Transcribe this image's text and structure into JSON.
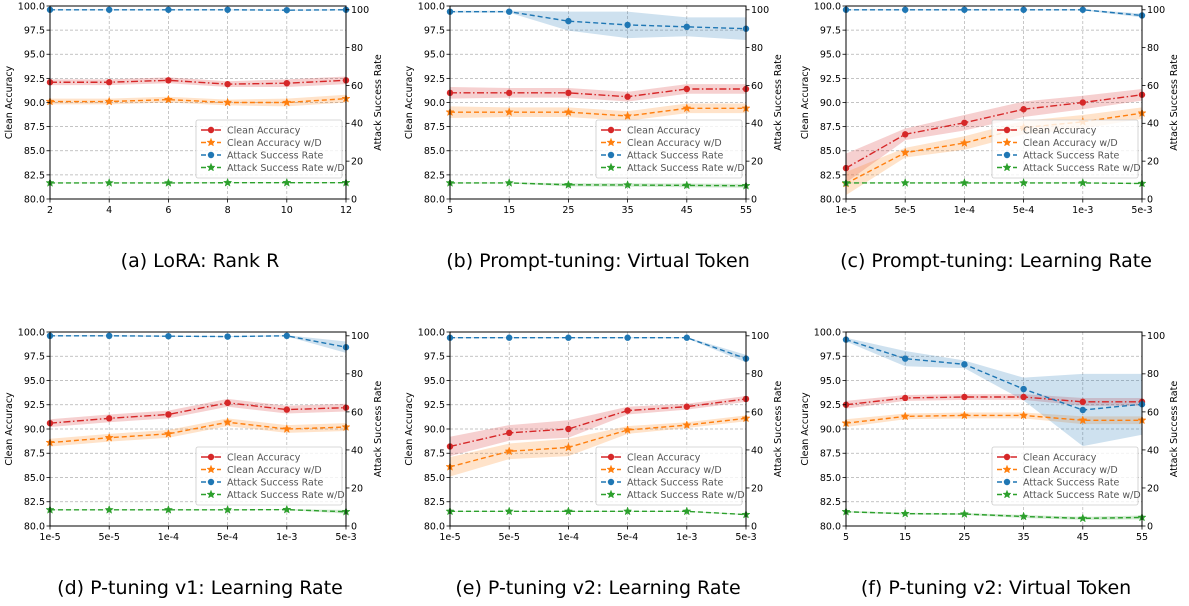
{
  "chart_data": [
    {
      "type": "line",
      "caption": "(a) LoRA: Rank R",
      "x": [
        2,
        4,
        6,
        8,
        10,
        12
      ],
      "categorical_x": false,
      "xlim": [
        2,
        12
      ],
      "xticks": [
        "2",
        "4",
        "6",
        "8",
        "10",
        "12"
      ],
      "ylabel": "Clean Accuracy",
      "ylim": [
        80.0,
        100.0
      ],
      "yticks": [
        "80.0",
        "82.5",
        "85.0",
        "87.5",
        "90.0",
        "92.5",
        "95.0",
        "97.5",
        "100.0"
      ],
      "y2label": "Attack Success Rate",
      "y2lim": [
        0,
        102
      ],
      "y2ticks": [
        "0",
        "20",
        "40",
        "60",
        "80",
        "100"
      ],
      "grid": true,
      "legend_loc": "center right",
      "series": [
        {
          "name": "Clean Accuracy",
          "axis": "left",
          "color": "#d62728",
          "marker": "circle",
          "values": [
            92.1,
            92.1,
            92.3,
            91.9,
            92.0,
            92.3
          ],
          "band": [
            0.3,
            0.3,
            0.3,
            0.3,
            0.4,
            0.4
          ]
        },
        {
          "name": "Clean Accuracy w/D",
          "axis": "left",
          "color": "#ff7f0e",
          "marker": "star",
          "values": [
            90.1,
            90.1,
            90.3,
            90.0,
            90.0,
            90.4
          ],
          "band": [
            0.3,
            0.3,
            0.3,
            0.3,
            0.4,
            0.4
          ]
        },
        {
          "name": "Attack Success Rate",
          "axis": "right",
          "color": "#1f77b4",
          "marker": "circle",
          "values": [
            100,
            100,
            100,
            100,
            99.8,
            100
          ],
          "band": [
            0.3,
            0.3,
            0.3,
            0.3,
            0.3,
            0.3
          ]
        },
        {
          "name": "Attack Success Rate w/D",
          "axis": "right",
          "color": "#2ca02c",
          "marker": "star",
          "values": [
            8.5,
            8.5,
            8.5,
            8.6,
            8.6,
            8.6
          ],
          "band": [
            0.2,
            0.2,
            0.2,
            0.2,
            0.2,
            0.2
          ]
        }
      ]
    },
    {
      "type": "line",
      "caption": "(b) Prompt-tuning: Virtual Token",
      "x": [
        5,
        15,
        25,
        35,
        45,
        55
      ],
      "categorical_x": false,
      "xlim": [
        5,
        55
      ],
      "xticks": [
        "5",
        "15",
        "25",
        "35",
        "45",
        "55"
      ],
      "ylabel": "Clean Accuracy",
      "ylim": [
        80.0,
        100.0
      ],
      "yticks": [
        "80.0",
        "82.5",
        "85.0",
        "87.5",
        "90.0",
        "92.5",
        "95.0",
        "97.5",
        "100.0"
      ],
      "y2label": "Attack Success Rate",
      "y2lim": [
        0,
        102
      ],
      "y2ticks": [
        "0",
        "20",
        "40",
        "60",
        "80",
        "100"
      ],
      "grid": true,
      "legend_loc": "center right",
      "series": [
        {
          "name": "Clean Accuracy",
          "axis": "left",
          "color": "#d62728",
          "marker": "circle",
          "values": [
            91.0,
            91.0,
            91.0,
            90.6,
            91.4,
            91.4
          ],
          "band": [
            0.6,
            0.5,
            0.5,
            0.5,
            0.5,
            0.5
          ]
        },
        {
          "name": "Clean Accuracy w/D",
          "axis": "left",
          "color": "#ff7f0e",
          "marker": "star",
          "values": [
            89.0,
            89.0,
            89.0,
            88.6,
            89.4,
            89.4
          ],
          "band": [
            0.6,
            0.5,
            0.5,
            0.5,
            0.5,
            0.5
          ]
        },
        {
          "name": "Attack Success Rate",
          "axis": "right",
          "color": "#1f77b4",
          "marker": "circle",
          "values": [
            99,
            99,
            94,
            92,
            91,
            90
          ],
          "band": [
            0.5,
            0.5,
            5,
            7,
            5,
            6
          ]
        },
        {
          "name": "Attack Success Rate w/D",
          "axis": "right",
          "color": "#2ca02c",
          "marker": "star",
          "values": [
            8.5,
            8.5,
            7.5,
            7.4,
            7.2,
            7.0
          ],
          "band": [
            0.3,
            0.3,
            0.8,
            0.9,
            1.0,
            1.0
          ]
        }
      ]
    },
    {
      "type": "line",
      "caption": "(c) Prompt-tuning: Learning Rate",
      "x": [
        "1e-5",
        "5e-5",
        "1e-4",
        "5e-4",
        "1e-3",
        "5e-3"
      ],
      "categorical_x": true,
      "xticks": [
        "1e-5",
        "5e-5",
        "1e-4",
        "5e-4",
        "1e-3",
        "5e-3"
      ],
      "ylabel": "Clean Accuracy",
      "ylim": [
        80.0,
        100.0
      ],
      "yticks": [
        "80.0",
        "82.5",
        "85.0",
        "87.5",
        "90.0",
        "92.5",
        "95.0",
        "97.5",
        "100.0"
      ],
      "y2label": "Attack Success Rate",
      "y2lim": [
        0,
        102
      ],
      "y2ticks": [
        "0",
        "20",
        "40",
        "60",
        "80",
        "100"
      ],
      "grid": true,
      "legend_loc": "center right",
      "series": [
        {
          "name": "Clean Accuracy",
          "axis": "left",
          "color": "#d62728",
          "marker": "circle",
          "values": [
            83.2,
            86.7,
            87.9,
            89.3,
            90.0,
            90.8
          ],
          "band": [
            1.5,
            0.6,
            0.8,
            0.8,
            0.7,
            0.6
          ]
        },
        {
          "name": "Clean Accuracy w/D",
          "axis": "left",
          "color": "#ff7f0e",
          "marker": "star",
          "values": [
            81.6,
            84.8,
            85.8,
            87.4,
            88.0,
            88.9
          ],
          "band": [
            1.2,
            0.5,
            0.7,
            0.7,
            0.7,
            0.6
          ]
        },
        {
          "name": "Attack Success Rate",
          "axis": "right",
          "color": "#1f77b4",
          "marker": "circle",
          "values": [
            100,
            100,
            100,
            100,
            100,
            97
          ],
          "band": [
            0.3,
            0.3,
            0.3,
            0.3,
            0.3,
            1.0
          ]
        },
        {
          "name": "Attack Success Rate w/D",
          "axis": "right",
          "color": "#2ca02c",
          "marker": "star",
          "values": [
            8.5,
            8.5,
            8.5,
            8.5,
            8.5,
            8.2
          ],
          "band": [
            0.2,
            0.2,
            0.2,
            0.2,
            0.2,
            0.3
          ]
        }
      ]
    },
    {
      "type": "line",
      "caption": "(d) P-tuning v1: Learning Rate",
      "x": [
        "1e-5",
        "5e-5",
        "1e-4",
        "5e-4",
        "1e-3",
        "5e-3"
      ],
      "categorical_x": true,
      "xticks": [
        "1e-5",
        "5e-5",
        "1e-4",
        "5e-4",
        "1e-3",
        "5e-3"
      ],
      "ylabel": "Clean Accuracy",
      "ylim": [
        80.0,
        100.0
      ],
      "yticks": [
        "80.0",
        "82.5",
        "85.0",
        "87.5",
        "90.0",
        "92.5",
        "95.0",
        "97.5",
        "100.0"
      ],
      "y2label": "Attack Success Rate",
      "y2lim": [
        0,
        102
      ],
      "y2ticks": [
        "0",
        "20",
        "40",
        "60",
        "80",
        "100"
      ],
      "grid": true,
      "legend_loc": "center right",
      "series": [
        {
          "name": "Clean Accuracy",
          "axis": "left",
          "color": "#d62728",
          "marker": "circle",
          "values": [
            90.6,
            91.1,
            91.5,
            92.7,
            92.0,
            92.2
          ],
          "band": [
            0.4,
            0.4,
            0.4,
            0.4,
            0.4,
            0.4
          ]
        },
        {
          "name": "Clean Accuracy w/D",
          "axis": "left",
          "color": "#ff7f0e",
          "marker": "star",
          "values": [
            88.6,
            89.1,
            89.5,
            90.7,
            90.0,
            90.2
          ],
          "band": [
            0.4,
            0.4,
            0.4,
            0.4,
            0.4,
            0.4
          ]
        },
        {
          "name": "Attack Success Rate",
          "axis": "right",
          "color": "#1f77b4",
          "marker": "circle",
          "values": [
            100,
            100,
            99.8,
            99.6,
            100,
            94
          ],
          "band": [
            0.3,
            0.3,
            0.3,
            0.3,
            0.3,
            3
          ]
        },
        {
          "name": "Attack Success Rate w/D",
          "axis": "right",
          "color": "#2ca02c",
          "marker": "star",
          "values": [
            8.5,
            8.5,
            8.5,
            8.5,
            8.6,
            7.5
          ],
          "band": [
            0.2,
            0.2,
            0.2,
            0.2,
            0.2,
            1.0
          ]
        }
      ]
    },
    {
      "type": "line",
      "caption": "(e) P-tuning v2: Learning Rate",
      "x": [
        "1e-5",
        "5e-5",
        "1e-4",
        "5e-4",
        "1e-3",
        "5e-3"
      ],
      "categorical_x": true,
      "xticks": [
        "1e-5",
        "5e-5",
        "1e-4",
        "5e-4",
        "1e-3",
        "5e-3"
      ],
      "ylabel": "Clean Accuracy",
      "ylim": [
        80.0,
        100.0
      ],
      "yticks": [
        "80.0",
        "82.5",
        "85.0",
        "87.5",
        "90.0",
        "92.5",
        "95.0",
        "97.5",
        "100.0"
      ],
      "y2label": "Attack Success Rate",
      "y2lim": [
        0,
        102
      ],
      "y2ticks": [
        "0",
        "20",
        "40",
        "60",
        "80",
        "100"
      ],
      "grid": true,
      "legend_loc": "center right",
      "series": [
        {
          "name": "Clean Accuracy",
          "axis": "left",
          "color": "#d62728",
          "marker": "circle",
          "values": [
            88.2,
            89.6,
            90.0,
            91.9,
            92.3,
            93.1
          ],
          "band": [
            1.0,
            0.8,
            0.9,
            0.4,
            0.3,
            0.3
          ]
        },
        {
          "name": "Clean Accuracy w/D",
          "axis": "left",
          "color": "#ff7f0e",
          "marker": "star",
          "values": [
            86.1,
            87.7,
            88.1,
            89.9,
            90.4,
            91.1
          ],
          "band": [
            1.0,
            0.8,
            0.9,
            0.4,
            0.3,
            0.3
          ]
        },
        {
          "name": "Attack Success Rate",
          "axis": "right",
          "color": "#1f77b4",
          "marker": "circle",
          "values": [
            99,
            99,
            99,
            99,
            99,
            88
          ],
          "band": [
            0.3,
            0.3,
            0.3,
            0.3,
            0.3,
            2
          ]
        },
        {
          "name": "Attack Success Rate w/D",
          "axis": "right",
          "color": "#2ca02c",
          "marker": "star",
          "values": [
            7.7,
            7.7,
            7.7,
            7.7,
            7.7,
            6.0
          ],
          "band": [
            0.2,
            0.2,
            0.2,
            0.2,
            0.2,
            0.3
          ]
        }
      ]
    },
    {
      "type": "line",
      "caption": "(f) P-tuning v2: Virtual Token",
      "x": [
        5,
        15,
        25,
        35,
        45,
        55
      ],
      "categorical_x": false,
      "xlim": [
        5,
        55
      ],
      "xticks": [
        "5",
        "15",
        "25",
        "35",
        "45",
        "55"
      ],
      "ylabel": "Clean Accuracy",
      "ylim": [
        80.0,
        100.0
      ],
      "yticks": [
        "80.0",
        "82.5",
        "85.0",
        "87.5",
        "90.0",
        "92.5",
        "95.0",
        "97.5",
        "100.0"
      ],
      "y2label": "Attack Success Rate",
      "y2lim": [
        0,
        102
      ],
      "y2ticks": [
        "0",
        "20",
        "40",
        "60",
        "80",
        "100"
      ],
      "grid": true,
      "legend_loc": "center right",
      "series": [
        {
          "name": "Clean Accuracy",
          "axis": "left",
          "color": "#d62728",
          "marker": "circle",
          "values": [
            92.5,
            93.2,
            93.3,
            93.3,
            92.8,
            92.8
          ],
          "band": [
            0.4,
            0.3,
            0.3,
            0.3,
            0.4,
            0.4
          ]
        },
        {
          "name": "Clean Accuracy w/D",
          "axis": "left",
          "color": "#ff7f0e",
          "marker": "star",
          "values": [
            90.6,
            91.3,
            91.4,
            91.4,
            90.9,
            90.9
          ],
          "band": [
            0.4,
            0.3,
            0.3,
            0.3,
            0.4,
            0.4
          ]
        },
        {
          "name": "Attack Success Rate",
          "axis": "right",
          "color": "#1f77b4",
          "marker": "circle",
          "values": [
            98,
            88,
            85,
            72,
            61,
            64
          ],
          "band": [
            1,
            4,
            2,
            6,
            19,
            16
          ]
        },
        {
          "name": "Attack Success Rate w/D",
          "axis": "right",
          "color": "#2ca02c",
          "marker": "star",
          "values": [
            7.5,
            6.5,
            6.3,
            5.0,
            4.0,
            4.5
          ],
          "band": [
            0.4,
            0.5,
            0.5,
            0.8,
            0.8,
            1.0
          ]
        }
      ]
    }
  ]
}
